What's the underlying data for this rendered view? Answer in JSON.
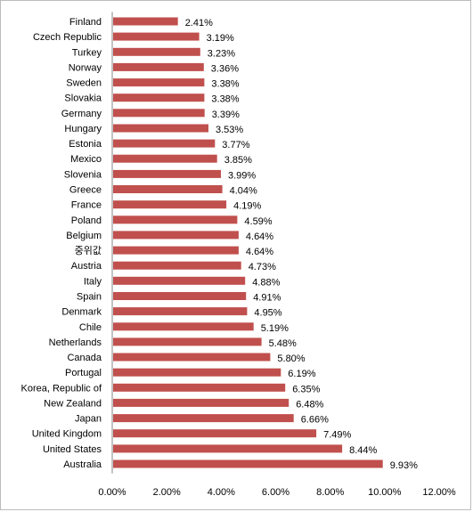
{
  "chart_data": {
    "type": "bar",
    "orientation": "horizontal",
    "categories": [
      "Finland",
      "Czech Republic",
      "Turkey",
      "Norway",
      "Sweden",
      "Slovakia",
      "Germany",
      "Hungary",
      "Estonia",
      "Mexico",
      "Slovenia",
      "Greece",
      "France",
      "Poland",
      "Belgium",
      "중위값",
      "Austria",
      "Italy",
      "Spain",
      "Denmark",
      "Chile",
      "Netherlands",
      "Canada",
      "Portugal",
      "Korea, Republic of",
      "New Zealand",
      "Japan",
      "United Kingdom",
      "United States",
      "Australia"
    ],
    "values": [
      2.41,
      3.19,
      3.23,
      3.36,
      3.38,
      3.38,
      3.39,
      3.53,
      3.77,
      3.85,
      3.99,
      4.04,
      4.19,
      4.59,
      4.64,
      4.64,
      4.73,
      4.88,
      4.91,
      4.95,
      5.19,
      5.48,
      5.8,
      6.19,
      6.35,
      6.48,
      6.66,
      7.49,
      8.44,
      9.93
    ],
    "value_labels": [
      "2.41%",
      "3.19%",
      "3.23%",
      "3.36%",
      "3.38%",
      "3.38%",
      "3.39%",
      "3.53%",
      "3.77%",
      "3.85%",
      "3.99%",
      "4.04%",
      "4.19%",
      "4.59%",
      "4.64%",
      "4.64%",
      "4.73%",
      "4.88%",
      "4.91%",
      "4.95%",
      "5.19%",
      "5.48%",
      "5.80%",
      "6.19%",
      "6.35%",
      "6.48%",
      "6.66%",
      "7.49%",
      "8.44%",
      "9.93%"
    ],
    "xlim": [
      0,
      12
    ],
    "xticks": [
      0,
      2,
      4,
      6,
      8,
      10,
      12
    ],
    "xtick_labels": [
      "0.00%",
      "2.00%",
      "4.00%",
      "6.00%",
      "8.00%",
      "10.00%",
      "12.00%"
    ],
    "grid": false,
    "legend": "none",
    "bar_color": "#c0504d"
  }
}
